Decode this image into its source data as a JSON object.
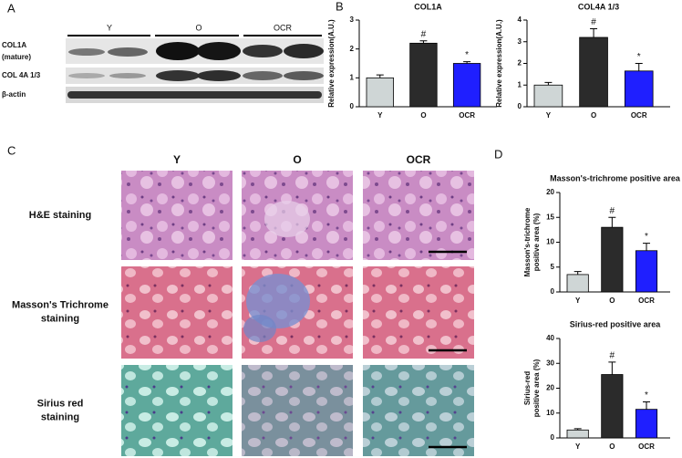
{
  "panel_labels": [
    "A",
    "B",
    "C",
    "D"
  ],
  "blot": {
    "groups": [
      "Y",
      "O",
      "OCR"
    ],
    "rows": [
      [
        "COL1A",
        "(mature)"
      ],
      [
        "COL 4A 1/3"
      ],
      [
        "β-actin"
      ]
    ]
  },
  "histology": {
    "columns": [
      "Y",
      "O",
      "OCR"
    ],
    "rows": [
      [
        "H&E staining"
      ],
      [
        "Masson's Trichrome",
        "staining"
      ],
      [
        "Sirius red",
        "staining"
      ]
    ]
  },
  "chart_data": [
    {
      "type": "bar",
      "title": "COL1A",
      "ylabel": [
        "Relative expression(A.U.)"
      ],
      "categories": [
        "Y",
        "O",
        "OCR"
      ],
      "values": [
        1.0,
        2.2,
        1.5
      ],
      "errors": [
        0.1,
        0.08,
        0.06
      ],
      "colors": [
        "#cfd6d6",
        "#2b2b2b",
        "#1f1fff"
      ],
      "ylim": [
        0,
        3
      ],
      "yticks": [
        0,
        1,
        2,
        3
      ],
      "annotations": [
        {
          "text": "#",
          "category": "O"
        },
        {
          "text": "*",
          "category": "OCR"
        }
      ]
    },
    {
      "type": "bar",
      "title": "COL4A 1/3",
      "ylabel": [
        "Relative expression(A.U.)"
      ],
      "categories": [
        "Y",
        "O",
        "OCR"
      ],
      "values": [
        1.0,
        3.2,
        1.65
      ],
      "errors": [
        0.12,
        0.4,
        0.35
      ],
      "colors": [
        "#cfd6d6",
        "#2b2b2b",
        "#1f1fff"
      ],
      "ylim": [
        0,
        4
      ],
      "yticks": [
        0,
        1,
        2,
        3,
        4
      ],
      "annotations": [
        {
          "text": "#",
          "category": "O"
        },
        {
          "text": "*",
          "category": "OCR"
        }
      ]
    },
    {
      "type": "bar",
      "title": "Masson's-trichrome positive area",
      "ylabel": [
        "Masson's-trichrome",
        "positive area (%)"
      ],
      "categories": [
        "Y",
        "O",
        "OCR"
      ],
      "values": [
        3.5,
        13,
        8.3
      ],
      "errors": [
        0.6,
        2,
        1.5
      ],
      "colors": [
        "#cfd6d6",
        "#2b2b2b",
        "#1f1fff"
      ],
      "ylim": [
        0,
        20
      ],
      "yticks": [
        0,
        5,
        10,
        15,
        20
      ],
      "annotations": [
        {
          "text": "#",
          "category": "O"
        },
        {
          "text": "*",
          "category": "OCR"
        }
      ]
    },
    {
      "type": "bar",
      "title": "Sirius-red positive area",
      "ylabel": [
        "Sirius-red",
        "positive area (%)"
      ],
      "categories": [
        "Y",
        "O",
        "OCR"
      ],
      "values": [
        3.2,
        25.5,
        11.5
      ],
      "errors": [
        0.5,
        5,
        3
      ],
      "colors": [
        "#cfd6d6",
        "#2b2b2b",
        "#1f1fff"
      ],
      "ylim": [
        0,
        40
      ],
      "yticks": [
        0,
        10,
        20,
        30,
        40
      ],
      "annotations": [
        {
          "text": "#",
          "category": "O"
        },
        {
          "text": "*",
          "category": "OCR"
        }
      ]
    }
  ]
}
